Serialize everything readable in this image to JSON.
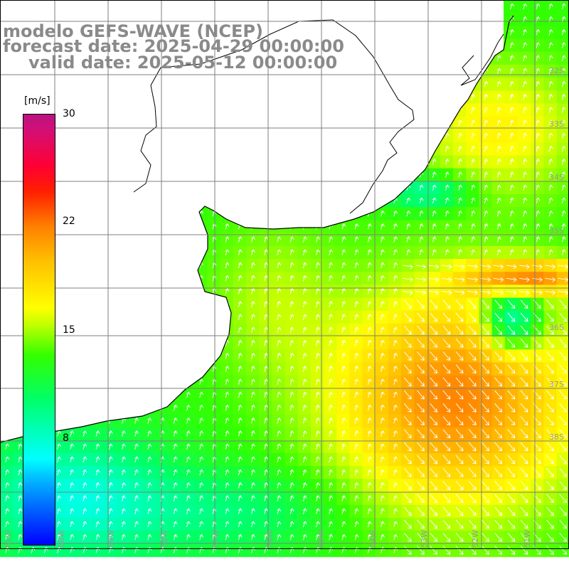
{
  "title": {
    "model": "modelo GEFS-WAVE (NCEP)",
    "forecast": "forecast date: 2025-04-29 00:00:00",
    "valid": "valid date: 2025-05-12 00:00:00"
  },
  "colorbar": {
    "unit": "[m/s]",
    "ticks": [
      "30",
      "22",
      "15",
      "8"
    ],
    "min": 0,
    "max": 30,
    "colors": [
      "#0000ff",
      "#00a8ff",
      "#00ffff",
      "#00ff66",
      "#33ff00",
      "#bfff00",
      "#ffff00",
      "#ffbf00",
      "#ff8000",
      "#ff2000",
      "#ff0033",
      "#b8127f"
    ]
  },
  "map": {
    "lat_labels": [
      "32S",
      "33S",
      "34S",
      "35S",
      "36S",
      "37S",
      "38S"
    ],
    "lon_labels": [
      "61W",
      "60W",
      "59W",
      "58W",
      "57W",
      "56W",
      "55W",
      "54W",
      "53W",
      "52W",
      "51W"
    ],
    "land_color": "#ffffff",
    "coastline_color": "#000000",
    "grid_color": "#7f7f7f",
    "arrow_color": "#ffffff",
    "field": "wind speed (m/s) with direction arrows"
  }
}
